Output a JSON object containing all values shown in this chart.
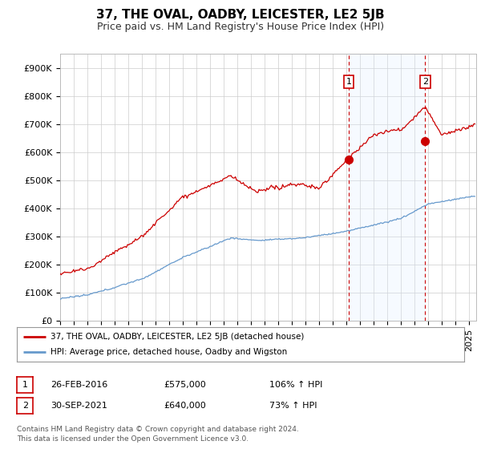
{
  "title": "37, THE OVAL, OADBY, LEICESTER, LE2 5JB",
  "subtitle": "Price paid vs. HM Land Registry's House Price Index (HPI)",
  "ylabel_ticks": [
    "£0",
    "£100K",
    "£200K",
    "£300K",
    "£400K",
    "£500K",
    "£600K",
    "£700K",
    "£800K",
    "£900K"
  ],
  "ytick_values": [
    0,
    100000,
    200000,
    300000,
    400000,
    500000,
    600000,
    700000,
    800000,
    900000
  ],
  "ylim": [
    0,
    950000
  ],
  "xlim_start": 1995.0,
  "xlim_end": 2025.5,
  "line1_color": "#cc0000",
  "line2_color": "#6699cc",
  "shade_color": "#ddeeff",
  "sale1_x": 2016.15,
  "sale1_y": 575000,
  "sale2_x": 2021.75,
  "sale2_y": 640000,
  "vline1_x": 2016.15,
  "vline2_x": 2021.75,
  "vline_color": "#cc0000",
  "annotation1_label": "1",
  "annotation2_label": "2",
  "legend_label1": "37, THE OVAL, OADBY, LEICESTER, LE2 5JB (detached house)",
  "legend_label2": "HPI: Average price, detached house, Oadby and Wigston",
  "table_row1": [
    "1",
    "26-FEB-2016",
    "£575,000",
    "106% ↑ HPI"
  ],
  "table_row2": [
    "2",
    "30-SEP-2021",
    "£640,000",
    "73% ↑ HPI"
  ],
  "footer": "Contains HM Land Registry data © Crown copyright and database right 2024.\nThis data is licensed under the Open Government Licence v3.0.",
  "background_color": "#ffffff",
  "grid_color": "#cccccc",
  "title_fontsize": 11,
  "subtitle_fontsize": 9,
  "tick_fontsize": 8
}
